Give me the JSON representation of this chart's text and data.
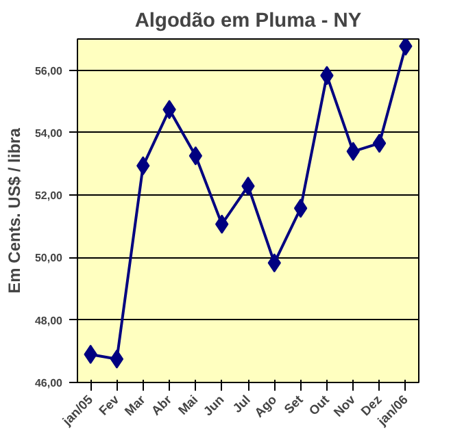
{
  "chart_data": {
    "type": "line",
    "title": "Algodão em Pluma - NY",
    "ylabel": "Em Cents. US$ / libra",
    "categories": [
      "jan/05",
      "Fev",
      "Mar",
      "Abr",
      "Mai",
      "Jun",
      "Jul",
      "Ago",
      "Set",
      "Out",
      "Nov",
      "Dez",
      "jan/06"
    ],
    "series": [
      {
        "color": "#000080",
        "values": [
          46.9,
          46.75,
          52.94,
          54.74,
          53.26,
          51.07,
          52.29,
          49.83,
          51.58,
          55.83,
          53.4,
          53.66,
          56.77
        ]
      }
    ],
    "ylim": [
      46,
      57
    ],
    "yticks": [
      {
        "value": 46,
        "label": "46,00"
      },
      {
        "value": 48,
        "label": "48,00"
      },
      {
        "value": 50,
        "label": "50,00"
      },
      {
        "value": 52,
        "label": "52,00"
      },
      {
        "value": 54,
        "label": "54,00"
      },
      {
        "value": 56,
        "label": "56,00"
      }
    ],
    "grid": "y",
    "marker": "diamond",
    "line_style": "solid"
  }
}
